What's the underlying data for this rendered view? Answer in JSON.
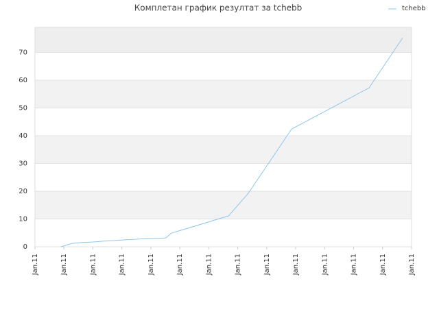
{
  "chart_data": {
    "type": "line",
    "title": "Комплетан график резултат за tchebb",
    "x": [
      0.9,
      1.28,
      1.59,
      1.97,
      2.34,
      2.72,
      3.1,
      3.48,
      3.86,
      4.24,
      4.52,
      4.71,
      6.68,
      7.36,
      8.86,
      11.53,
      12.69
    ],
    "series": [
      {
        "name": "tchebb",
        "color": "#8ec6ef",
        "values": [
          0,
          1.2,
          1.5,
          1.7,
          2.0,
          2.2,
          2.5,
          2.7,
          3.0,
          3.0,
          3.2,
          4.9,
          11.1,
          19.2,
          42.4,
          57.2,
          75.2
        ]
      }
    ],
    "xlim": [
      0,
      13
    ],
    "xticks": [
      {
        "value": 0,
        "label": "Jan.11"
      },
      {
        "value": 1,
        "label": "Jan.11"
      },
      {
        "value": 2,
        "label": "Jan.11"
      },
      {
        "value": 3,
        "label": "Jan.11"
      },
      {
        "value": 4,
        "label": "Jan.11"
      },
      {
        "value": 5,
        "label": "Jan.11"
      },
      {
        "value": 6,
        "label": "Jan.11"
      },
      {
        "value": 7,
        "label": "Jan.11"
      },
      {
        "value": 8,
        "label": "Jan.11"
      },
      {
        "value": 9,
        "label": "Jan.11"
      },
      {
        "value": 10,
        "label": "Jan.11"
      },
      {
        "value": 11,
        "label": "Jan.11"
      },
      {
        "value": 12,
        "label": "Jan.11"
      },
      {
        "value": 13,
        "label": "Jan.11"
      }
    ],
    "ylim": [
      0,
      79
    ],
    "yticks": [
      0,
      10,
      20,
      30,
      40,
      50,
      60,
      70
    ],
    "grid": true,
    "legend": "top-right"
  }
}
